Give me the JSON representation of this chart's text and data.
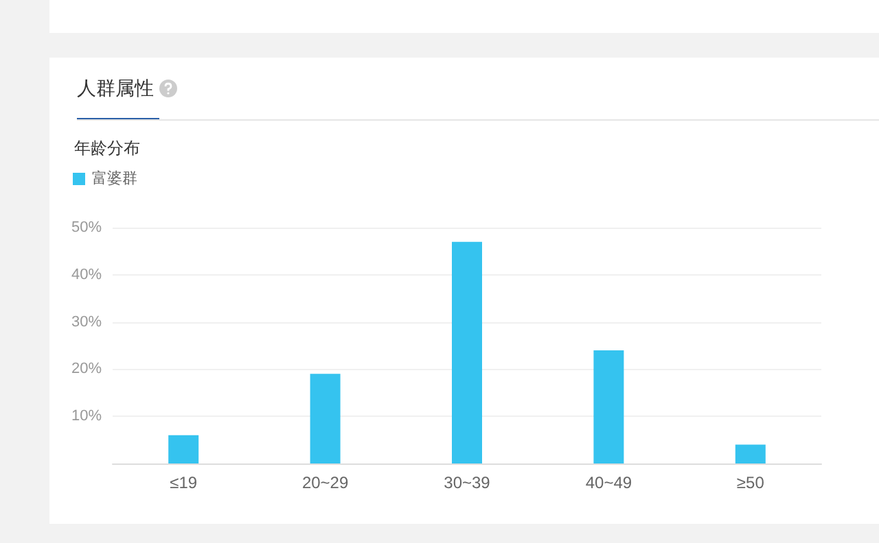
{
  "chart_data": {
    "type": "bar",
    "title": "人群属性",
    "subtitle": "年龄分布",
    "categories": [
      "≤19",
      "20~29",
      "30~39",
      "40~49",
      "≥50"
    ],
    "series": [
      {
        "name": "富婆群",
        "color": "#35c3ef",
        "values": [
          6,
          19,
          47,
          24,
          4
        ]
      }
    ],
    "ylim": [
      0,
      50
    ],
    "yticks": [
      {
        "value": 0,
        "label": null
      },
      {
        "value": 10,
        "label": "10%"
      },
      {
        "value": 20,
        "label": "20%"
      },
      {
        "value": 30,
        "label": "30%"
      },
      {
        "value": 40,
        "label": "40%"
      },
      {
        "value": 50,
        "label": "50%"
      }
    ],
    "grid": "y",
    "legend": "top left"
  }
}
